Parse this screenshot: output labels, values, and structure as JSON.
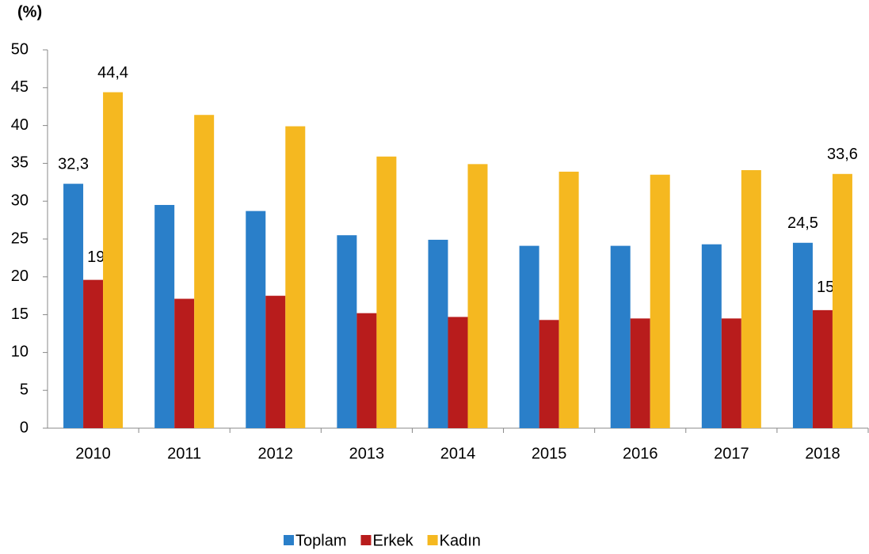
{
  "chart_data": {
    "type": "bar",
    "y_label": "(%)",
    "categories": [
      "2010",
      "2011",
      "2012",
      "2013",
      "2014",
      "2015",
      "2016",
      "2017",
      "2018"
    ],
    "series": [
      {
        "name": "Toplam",
        "color": "#2a7fc9",
        "values": [
          32.3,
          29.5,
          28.7,
          25.5,
          24.9,
          24.1,
          24.1,
          24.3,
          24.5
        ],
        "value_labels": [
          "32,3",
          null,
          null,
          null,
          null,
          null,
          null,
          null,
          "24,5"
        ]
      },
      {
        "name": "Erkek",
        "color": "#b81c1c",
        "values": [
          19.6,
          17.1,
          17.5,
          15.2,
          14.7,
          14.3,
          14.5,
          14.5,
          15.6
        ],
        "value_labels": [
          "19,6",
          null,
          null,
          null,
          null,
          null,
          null,
          null,
          "15,6"
        ]
      },
      {
        "name": "Kadın",
        "color": "#f5b820",
        "values": [
          44.4,
          41.4,
          39.9,
          35.9,
          34.9,
          33.9,
          33.5,
          34.1,
          33.6
        ],
        "value_labels": [
          "44,4",
          null,
          null,
          null,
          null,
          null,
          null,
          null,
          "33,6"
        ]
      }
    ],
    "ylim": [
      0,
      50
    ],
    "yticks": [
      0,
      5,
      10,
      15,
      20,
      25,
      30,
      35,
      40,
      45,
      50
    ],
    "grid": false,
    "legend": "bottom"
  }
}
